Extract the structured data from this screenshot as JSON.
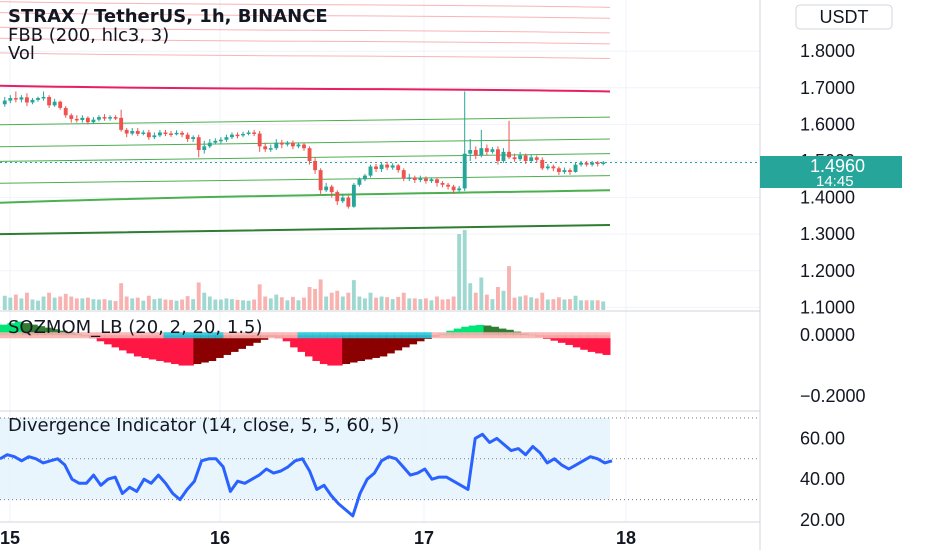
{
  "chart_data": {
    "type": "candlestick",
    "title": "STRAX / TetherUS, 1h, BINANCE",
    "currency_label": "USDT",
    "indicator_labels": [
      "FBB (200, hlc3, 3)",
      "Vol"
    ],
    "price_axis": {
      "ticks": [
        "1.8000",
        "1.7000",
        "1.6000",
        "1.5000",
        "1.4000",
        "1.3000",
        "1.2000",
        "1.1000"
      ],
      "range": [
        1.09,
        1.94
      ]
    },
    "last_price": "1.4960",
    "countdown": "14:45",
    "time_axis": {
      "labels": [
        "15",
        "16",
        "17",
        "18"
      ]
    },
    "fbb_levels": [
      1.93,
      1.9,
      1.86,
      1.83,
      1.79,
      1.7,
      1.61,
      1.55,
      1.51,
      1.45,
      1.41,
      1.315
    ],
    "candles": [
      {
        "o": 1.655,
        "c": 1.665,
        "h": 1.675,
        "l": 1.648
      },
      {
        "o": 1.665,
        "c": 1.672,
        "h": 1.68,
        "l": 1.658
      },
      {
        "o": 1.672,
        "c": 1.668,
        "h": 1.69,
        "l": 1.66
      },
      {
        "o": 1.668,
        "c": 1.674,
        "h": 1.68,
        "l": 1.66
      },
      {
        "o": 1.674,
        "c": 1.66,
        "h": 1.685,
        "l": 1.65
      },
      {
        "o": 1.66,
        "c": 1.667,
        "h": 1.672,
        "l": 1.655
      },
      {
        "o": 1.667,
        "c": 1.672,
        "h": 1.676,
        "l": 1.662
      },
      {
        "o": 1.672,
        "c": 1.675,
        "h": 1.69,
        "l": 1.665
      },
      {
        "o": 1.675,
        "c": 1.652,
        "h": 1.68,
        "l": 1.645
      },
      {
        "o": 1.652,
        "c": 1.662,
        "h": 1.67,
        "l": 1.648
      },
      {
        "o": 1.662,
        "c": 1.645,
        "h": 1.665,
        "l": 1.64
      },
      {
        "o": 1.645,
        "c": 1.625,
        "h": 1.65,
        "l": 1.618
      },
      {
        "o": 1.625,
        "c": 1.615,
        "h": 1.63,
        "l": 1.605
      },
      {
        "o": 1.615,
        "c": 1.612,
        "h": 1.625,
        "l": 1.605
      },
      {
        "o": 1.612,
        "c": 1.618,
        "h": 1.625,
        "l": 1.605
      },
      {
        "o": 1.618,
        "c": 1.606,
        "h": 1.622,
        "l": 1.6
      },
      {
        "o": 1.606,
        "c": 1.613,
        "h": 1.62,
        "l": 1.602
      },
      {
        "o": 1.613,
        "c": 1.62,
        "h": 1.625,
        "l": 1.608
      },
      {
        "o": 1.62,
        "c": 1.616,
        "h": 1.628,
        "l": 1.61
      },
      {
        "o": 1.616,
        "c": 1.62,
        "h": 1.625,
        "l": 1.61
      },
      {
        "o": 1.62,
        "c": 1.618,
        "h": 1.625,
        "l": 1.612
      },
      {
        "o": 1.618,
        "c": 1.585,
        "h": 1.64,
        "l": 1.58
      },
      {
        "o": 1.585,
        "c": 1.575,
        "h": 1.59,
        "l": 1.565
      },
      {
        "o": 1.575,
        "c": 1.582,
        "h": 1.59,
        "l": 1.57
      },
      {
        "o": 1.582,
        "c": 1.574,
        "h": 1.59,
        "l": 1.568
      },
      {
        "o": 1.574,
        "c": 1.578,
        "h": 1.584,
        "l": 1.57
      },
      {
        "o": 1.578,
        "c": 1.565,
        "h": 1.585,
        "l": 1.558
      },
      {
        "o": 1.565,
        "c": 1.57,
        "h": 1.578,
        "l": 1.56
      },
      {
        "o": 1.57,
        "c": 1.578,
        "h": 1.585,
        "l": 1.565
      },
      {
        "o": 1.578,
        "c": 1.575,
        "h": 1.585,
        "l": 1.568
      },
      {
        "o": 1.575,
        "c": 1.574,
        "h": 1.582,
        "l": 1.566
      },
      {
        "o": 1.574,
        "c": 1.577,
        "h": 1.584,
        "l": 1.57
      },
      {
        "o": 1.577,
        "c": 1.572,
        "h": 1.582,
        "l": 1.565
      },
      {
        "o": 1.572,
        "c": 1.56,
        "h": 1.578,
        "l": 1.552
      },
      {
        "o": 1.56,
        "c": 1.565,
        "h": 1.57,
        "l": 1.552
      },
      {
        "o": 1.565,
        "c": 1.53,
        "h": 1.572,
        "l": 1.51
      },
      {
        "o": 1.53,
        "c": 1.54,
        "h": 1.555,
        "l": 1.52
      },
      {
        "o": 1.54,
        "c": 1.55,
        "h": 1.56,
        "l": 1.535
      },
      {
        "o": 1.55,
        "c": 1.555,
        "h": 1.562,
        "l": 1.545
      },
      {
        "o": 1.555,
        "c": 1.558,
        "h": 1.565,
        "l": 1.548
      },
      {
        "o": 1.558,
        "c": 1.565,
        "h": 1.572,
        "l": 1.552
      },
      {
        "o": 1.565,
        "c": 1.572,
        "h": 1.578,
        "l": 1.56
      },
      {
        "o": 1.572,
        "c": 1.57,
        "h": 1.578,
        "l": 1.562
      },
      {
        "o": 1.57,
        "c": 1.574,
        "h": 1.58,
        "l": 1.565
      },
      {
        "o": 1.574,
        "c": 1.578,
        "h": 1.584,
        "l": 1.57
      },
      {
        "o": 1.578,
        "c": 1.575,
        "h": 1.585,
        "l": 1.568
      },
      {
        "o": 1.575,
        "c": 1.54,
        "h": 1.582,
        "l": 1.525
      },
      {
        "o": 1.54,
        "c": 1.532,
        "h": 1.55,
        "l": 1.525
      },
      {
        "o": 1.532,
        "c": 1.535,
        "h": 1.545,
        "l": 1.525
      },
      {
        "o": 1.535,
        "c": 1.55,
        "h": 1.56,
        "l": 1.53
      },
      {
        "o": 1.55,
        "c": 1.545,
        "h": 1.558,
        "l": 1.535
      },
      {
        "o": 1.545,
        "c": 1.55,
        "h": 1.555,
        "l": 1.54
      },
      {
        "o": 1.55,
        "c": 1.54,
        "h": 1.556,
        "l": 1.532
      },
      {
        "o": 1.54,
        "c": 1.545,
        "h": 1.55,
        "l": 1.535
      },
      {
        "o": 1.545,
        "c": 1.535,
        "h": 1.55,
        "l": 1.528
      },
      {
        "o": 1.535,
        "c": 1.5,
        "h": 1.54,
        "l": 1.49
      },
      {
        "o": 1.5,
        "c": 1.475,
        "h": 1.51,
        "l": 1.465
      },
      {
        "o": 1.475,
        "c": 1.42,
        "h": 1.48,
        "l": 1.41
      },
      {
        "o": 1.42,
        "c": 1.43,
        "h": 1.44,
        "l": 1.415
      },
      {
        "o": 1.43,
        "c": 1.415,
        "h": 1.435,
        "l": 1.4
      },
      {
        "o": 1.415,
        "c": 1.39,
        "h": 1.42,
        "l": 1.38
      },
      {
        "o": 1.39,
        "c": 1.4,
        "h": 1.41,
        "l": 1.385
      },
      {
        "o": 1.4,
        "c": 1.375,
        "h": 1.405,
        "l": 1.37
      },
      {
        "o": 1.375,
        "c": 1.435,
        "h": 1.44,
        "l": 1.372
      },
      {
        "o": 1.435,
        "c": 1.45,
        "h": 1.455,
        "l": 1.43
      },
      {
        "o": 1.45,
        "c": 1.46,
        "h": 1.465,
        "l": 1.445
      },
      {
        "o": 1.46,
        "c": 1.485,
        "h": 1.49,
        "l": 1.455
      },
      {
        "o": 1.485,
        "c": 1.478,
        "h": 1.492,
        "l": 1.47
      },
      {
        "o": 1.478,
        "c": 1.49,
        "h": 1.495,
        "l": 1.47
      },
      {
        "o": 1.49,
        "c": 1.482,
        "h": 1.498,
        "l": 1.475
      },
      {
        "o": 1.482,
        "c": 1.488,
        "h": 1.494,
        "l": 1.476
      },
      {
        "o": 1.488,
        "c": 1.475,
        "h": 1.492,
        "l": 1.468
      },
      {
        "o": 1.475,
        "c": 1.452,
        "h": 1.48,
        "l": 1.445
      },
      {
        "o": 1.452,
        "c": 1.455,
        "h": 1.465,
        "l": 1.445
      },
      {
        "o": 1.455,
        "c": 1.448,
        "h": 1.46,
        "l": 1.44
      },
      {
        "o": 1.448,
        "c": 1.452,
        "h": 1.46,
        "l": 1.442
      },
      {
        "o": 1.452,
        "c": 1.445,
        "h": 1.458,
        "l": 1.438
      },
      {
        "o": 1.445,
        "c": 1.45,
        "h": 1.455,
        "l": 1.44
      },
      {
        "o": 1.45,
        "c": 1.44,
        "h": 1.455,
        "l": 1.43
      },
      {
        "o": 1.44,
        "c": 1.435,
        "h": 1.445,
        "l": 1.428
      },
      {
        "o": 1.435,
        "c": 1.43,
        "h": 1.44,
        "l": 1.422
      },
      {
        "o": 1.43,
        "c": 1.42,
        "h": 1.435,
        "l": 1.41
      },
      {
        "o": 1.42,
        "c": 1.425,
        "h": 1.432,
        "l": 1.415
      },
      {
        "o": 1.425,
        "c": 1.52,
        "h": 1.69,
        "l": 1.418
      },
      {
        "o": 1.52,
        "c": 1.53,
        "h": 1.56,
        "l": 1.5
      },
      {
        "o": 1.53,
        "c": 1.515,
        "h": 1.54,
        "l": 1.505
      },
      {
        "o": 1.515,
        "c": 1.535,
        "h": 1.585,
        "l": 1.51
      },
      {
        "o": 1.535,
        "c": 1.525,
        "h": 1.545,
        "l": 1.515
      },
      {
        "o": 1.525,
        "c": 1.532,
        "h": 1.538,
        "l": 1.52
      },
      {
        "o": 1.532,
        "c": 1.5,
        "h": 1.54,
        "l": 1.49
      },
      {
        "o": 1.5,
        "c": 1.525,
        "h": 1.535,
        "l": 1.495
      },
      {
        "o": 1.525,
        "c": 1.51,
        "h": 1.61,
        "l": 1.505
      },
      {
        "o": 1.51,
        "c": 1.505,
        "h": 1.52,
        "l": 1.498
      },
      {
        "o": 1.505,
        "c": 1.515,
        "h": 1.525,
        "l": 1.5
      },
      {
        "o": 1.515,
        "c": 1.5,
        "h": 1.52,
        "l": 1.492
      },
      {
        "o": 1.5,
        "c": 1.51,
        "h": 1.518,
        "l": 1.495
      },
      {
        "o": 1.51,
        "c": 1.503,
        "h": 1.515,
        "l": 1.495
      },
      {
        "o": 1.503,
        "c": 1.48,
        "h": 1.51,
        "l": 1.475
      },
      {
        "o": 1.48,
        "c": 1.485,
        "h": 1.492,
        "l": 1.475
      },
      {
        "o": 1.485,
        "c": 1.48,
        "h": 1.49,
        "l": 1.472
      },
      {
        "o": 1.48,
        "c": 1.47,
        "h": 1.485,
        "l": 1.462
      },
      {
        "o": 1.47,
        "c": 1.475,
        "h": 1.482,
        "l": 1.465
      },
      {
        "o": 1.475,
        "c": 1.47,
        "h": 1.48,
        "l": 1.462
      },
      {
        "o": 1.47,
        "c": 1.49,
        "h": 1.495,
        "l": 1.468
      },
      {
        "o": 1.49,
        "c": 1.495,
        "h": 1.5,
        "l": 1.485
      },
      {
        "o": 1.495,
        "c": 1.49,
        "h": 1.5,
        "l": 1.485
      },
      {
        "o": 1.49,
        "c": 1.496,
        "h": 1.5,
        "l": 1.485
      },
      {
        "o": 1.496,
        "c": 1.492,
        "h": 1.5,
        "l": 1.485
      },
      {
        "o": 1.492,
        "c": 1.496,
        "h": 1.5,
        "l": 1.488
      }
    ],
    "squeeze": {
      "label": "SQZMOM_LB (20, 2, 20, 1.5)",
      "ticks": [
        "0.0000",
        "−0.2000"
      ],
      "range": [
        -0.25,
        0.08
      ],
      "values": [
        0.035,
        0.04,
        0.045,
        0.04,
        0.035,
        0.03,
        0.025,
        0.02,
        0.015,
        0.01,
        0.005,
        0.0,
        -0.01,
        -0.02,
        -0.03,
        -0.04,
        -0.05,
        -0.06,
        -0.07,
        -0.075,
        -0.08,
        -0.085,
        -0.09,
        -0.095,
        -0.1,
        -0.1,
        -0.095,
        -0.09,
        -0.085,
        -0.075,
        -0.065,
        -0.055,
        -0.045,
        -0.035,
        -0.025,
        -0.015,
        -0.005,
        -0.01,
        -0.02,
        -0.04,
        -0.055,
        -0.07,
        -0.085,
        -0.095,
        -0.1,
        -0.1,
        -0.095,
        -0.09,
        -0.085,
        -0.08,
        -0.075,
        -0.07,
        -0.06,
        -0.05,
        -0.04,
        -0.03,
        -0.02,
        -0.012,
        -0.005,
        0.005,
        0.015,
        0.022,
        0.028,
        0.032,
        0.034,
        0.032,
        0.028,
        0.022,
        0.018,
        0.012,
        0.006,
        0.002,
        -0.005,
        -0.012,
        -0.018,
        -0.025,
        -0.032,
        -0.04,
        -0.048,
        -0.055,
        -0.06,
        -0.065
      ]
    },
    "divergence": {
      "label": "Divergence Indicator (14, close, 5, 5, 60, 5)",
      "ticks": [
        "60.00",
        "40.00",
        "20.00"
      ],
      "range": [
        19,
        70
      ],
      "band": [
        30,
        70
      ],
      "midline": 50,
      "values": [
        50,
        52,
        51,
        49,
        51,
        50,
        48,
        49,
        50,
        47,
        40,
        38,
        38,
        42,
        37,
        40,
        41,
        33,
        36,
        34,
        40,
        38,
        42,
        38,
        33,
        30,
        35,
        39,
        49,
        50,
        50,
        46,
        34,
        39,
        38,
        40,
        42,
        45,
        43,
        44,
        46,
        49,
        50,
        44,
        35,
        37,
        32,
        28,
        25,
        22,
        33,
        40,
        43,
        49,
        51,
        50,
        46,
        42,
        43,
        45,
        40,
        41,
        41,
        39,
        37,
        35,
        60,
        62,
        58,
        60,
        57,
        54,
        55,
        52,
        56,
        53,
        48,
        50,
        47,
        45,
        47,
        49,
        51,
        50,
        48,
        49
      ]
    }
  }
}
